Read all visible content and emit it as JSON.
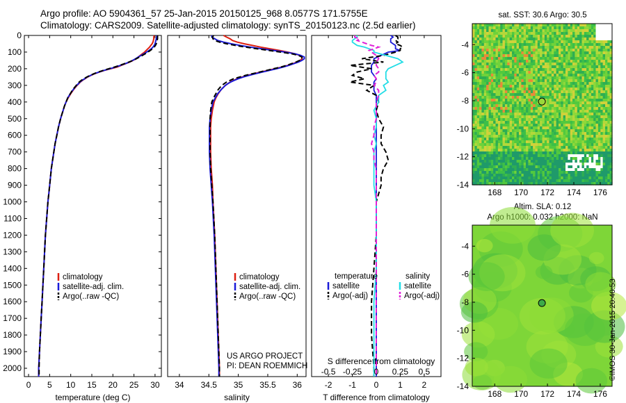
{
  "header": {
    "title": "Argo profile: AO 5904361_57 25-Jan-2015 20150125_968 8.0577S 171.5755E",
    "subtitle": "Climatology: CARS2009. Satellite-adjusted climatology: synTS_20150123.nc (2.5d earlier)"
  },
  "credit": "©IMOS 30-Jan-2015 20:40:53",
  "colors": {
    "climatology": "#dd1f10",
    "satellite": "#1a1ad8",
    "argo": "#000000",
    "sal_satellite": "#22dde6",
    "sal_argo": "#e020d8"
  },
  "chart_data": [
    {
      "type": "line",
      "name": "temperature",
      "xlabel": "temperature (deg C)",
      "ylim": [
        0,
        2050
      ],
      "xlim": [
        -1,
        31.5
      ],
      "yticks": [
        0,
        100,
        200,
        300,
        400,
        500,
        600,
        700,
        800,
        900,
        1000,
        1100,
        1200,
        1300,
        1400,
        1500,
        1600,
        1700,
        1800,
        1900,
        2000
      ],
      "xticks": [
        0,
        5,
        10,
        15,
        20,
        25,
        30
      ],
      "legend": [
        "climatology",
        "satellite-adj. clim.",
        "Argo(..raw -QC)"
      ],
      "depth": [
        0,
        10,
        20,
        30,
        40,
        50,
        60,
        70,
        80,
        90,
        100,
        110,
        120,
        130,
        140,
        150,
        160,
        170,
        180,
        190,
        200,
        210,
        220,
        230,
        240,
        250,
        260,
        270,
        280,
        290,
        300,
        325,
        350,
        375,
        400,
        425,
        450,
        475,
        500,
        550,
        600,
        650,
        700,
        750,
        800,
        850,
        900,
        950,
        1000,
        1100,
        1200,
        1300,
        1400,
        1500,
        1600,
        1700,
        1800,
        1900,
        2000,
        2050
      ],
      "series": [
        {
          "key": "climatology",
          "values": [
            29.8,
            29.7,
            29.7,
            29.6,
            29.5,
            29.3,
            29.0,
            28.7,
            28.3,
            27.9,
            27.5,
            27.0,
            26.5,
            26.0,
            25.5,
            24.8,
            24.0,
            23.0,
            22.0,
            21.0,
            19.5,
            18.0,
            16.8,
            15.7,
            14.8,
            14.0,
            13.4,
            12.8,
            12.3,
            11.9,
            11.5,
            10.7,
            10.0,
            9.4,
            8.9,
            8.5,
            8.2,
            7.9,
            7.6,
            7.1,
            6.7,
            6.3,
            6.0,
            5.7,
            5.4,
            5.2,
            5.0,
            4.8,
            4.6,
            4.3,
            4.0,
            3.8,
            3.6,
            3.4,
            3.2,
            3.0,
            2.8,
            2.6,
            2.4,
            2.4
          ]
        },
        {
          "key": "satellite",
          "values": [
            30.4,
            30.4,
            30.3,
            30.2,
            30.1,
            30.0,
            29.8,
            29.5,
            29.1,
            28.6,
            28.0,
            27.4,
            26.7,
            26.0,
            25.4,
            24.7,
            23.9,
            22.9,
            21.8,
            20.6,
            19.3,
            17.9,
            16.7,
            15.6,
            14.7,
            13.9,
            13.3,
            12.7,
            12.2,
            11.8,
            11.4,
            10.6,
            9.9,
            9.3,
            8.9,
            8.5,
            8.2,
            7.9,
            7.6,
            7.1,
            6.7,
            6.3,
            6.0,
            5.7,
            5.4,
            5.2,
            5.0,
            4.8,
            4.6,
            4.3,
            4.0,
            3.8,
            3.6,
            3.4,
            3.2,
            3.0,
            2.8,
            2.6,
            2.4,
            2.4
          ]
        },
        {
          "key": "argo",
          "values": [
            30.6,
            30.6,
            30.6,
            30.5,
            30.4,
            30.3,
            30.1,
            29.8,
            29.4,
            28.9,
            28.3,
            27.7,
            27.0,
            26.3,
            25.6,
            24.8,
            23.8,
            22.7,
            21.6,
            20.4,
            19.0,
            17.7,
            16.5,
            15.5,
            14.6,
            13.8,
            13.1,
            12.5,
            12.0,
            11.6,
            11.3,
            10.5,
            9.9,
            9.3,
            8.9,
            8.5,
            8.2,
            7.9,
            7.6,
            7.1,
            6.7,
            6.3,
            6.0,
            5.7,
            5.4,
            5.2,
            5.0,
            4.8,
            4.6,
            4.3,
            4.0,
            3.8,
            3.6,
            3.4,
            3.2,
            3.0,
            2.8,
            2.6,
            2.5,
            2.5
          ]
        }
      ]
    },
    {
      "type": "line",
      "name": "salinity",
      "xlabel": "salinity",
      "ylim": [
        0,
        2050
      ],
      "xlim": [
        33.8,
        36.15
      ],
      "xticks": [
        34,
        34.5,
        35,
        35.5,
        36
      ],
      "legend": [
        "climatology",
        "satellite-adj. clim.",
        "Argo(..raw -QC)"
      ],
      "annotation": [
        "US ARGO PROJECT",
        "PI: DEAN ROEMMICH"
      ],
      "depth": [
        0,
        10,
        20,
        30,
        40,
        50,
        60,
        70,
        80,
        90,
        100,
        110,
        120,
        130,
        140,
        150,
        160,
        170,
        180,
        190,
        200,
        210,
        220,
        230,
        240,
        250,
        260,
        270,
        280,
        290,
        300,
        325,
        350,
        375,
        400,
        450,
        500,
        550,
        600,
        700,
        800,
        900,
        1000,
        1200,
        1400,
        1600,
        1800,
        2000,
        2050
      ],
      "series": [
        {
          "key": "climatology",
          "values": [
            34.75,
            34.8,
            34.86,
            34.9,
            34.98,
            35.1,
            35.24,
            35.38,
            35.54,
            35.7,
            35.84,
            35.96,
            36.04,
            36.08,
            36.08,
            36.05,
            36.0,
            35.92,
            35.84,
            35.74,
            35.62,
            35.5,
            35.38,
            35.26,
            35.16,
            35.06,
            34.98,
            34.92,
            34.86,
            34.82,
            34.78,
            34.71,
            34.66,
            34.62,
            34.59,
            34.56,
            34.54,
            34.53,
            34.53,
            34.53,
            34.54,
            34.56,
            34.57,
            34.6,
            34.62,
            34.64,
            34.66,
            34.68,
            34.68
          ]
        },
        {
          "key": "satellite",
          "values": [
            34.55,
            34.55,
            34.6,
            34.65,
            34.75,
            34.88,
            35.03,
            35.2,
            35.4,
            35.6,
            35.8,
            35.96,
            36.06,
            36.12,
            36.12,
            36.08,
            36.02,
            35.94,
            35.86,
            35.76,
            35.65,
            35.53,
            35.41,
            35.29,
            35.18,
            35.08,
            35.0,
            34.93,
            34.87,
            34.82,
            34.78,
            34.71,
            34.65,
            34.61,
            34.57,
            34.54,
            34.52,
            34.51,
            34.51,
            34.51,
            34.52,
            34.54,
            34.56,
            34.59,
            34.61,
            34.63,
            34.65,
            34.67,
            34.67
          ]
        },
        {
          "key": "argo",
          "values": [
            34.58,
            34.56,
            34.57,
            34.6,
            34.68,
            34.8,
            34.95,
            35.12,
            35.32,
            35.52,
            35.72,
            35.9,
            36.02,
            36.08,
            36.08,
            36.04,
            35.98,
            35.9,
            35.82,
            35.72,
            35.6,
            35.48,
            35.36,
            35.24,
            35.12,
            35.02,
            34.92,
            34.86,
            34.8,
            34.76,
            34.72,
            34.66,
            34.62,
            34.58,
            34.55,
            34.53,
            34.52,
            34.52,
            34.52,
            34.52,
            34.53,
            34.55,
            34.57,
            34.6,
            34.62,
            34.64,
            34.66,
            34.68,
            34.68
          ]
        }
      ]
    },
    {
      "type": "line",
      "name": "difference",
      "xlabel": "T difference from climatology",
      "top_xlabel": "S difference from climatology",
      "ylim": [
        0,
        2050
      ],
      "xlim": [
        -2.7,
        2.7
      ],
      "xticks": [
        -2,
        -1,
        0,
        1,
        2
      ],
      "s_ticks": [
        {
          "label": "-0.5",
          "t": -2
        },
        {
          "label": "-0.25",
          "t": -1
        },
        {
          "label": "0",
          "t": 0
        },
        {
          "label": "0.25",
          "t": 1
        },
        {
          "label": "0.5",
          "t": 2
        }
      ],
      "legend_t_title": "temperature",
      "legend_s_title": "salinity",
      "legend": [
        "satellite",
        "Argo(-adj)",
        "satellite",
        "Argo(-adj)"
      ],
      "depth": [
        0,
        10,
        20,
        30,
        40,
        50,
        60,
        70,
        80,
        90,
        100,
        120,
        140,
        160,
        180,
        200,
        220,
        240,
        260,
        280,
        300,
        330,
        360,
        400,
        450,
        500,
        550,
        600,
        650,
        700,
        750,
        800,
        850,
        900,
        1000,
        1200,
        1400,
        1600,
        1800,
        2000,
        2050
      ],
      "series": [
        {
          "key": "t_sat",
          "values": [
            0.6,
            0.7,
            0.6,
            0.6,
            0.6,
            0.7,
            0.8,
            0.8,
            0.8,
            1.0,
            0.5,
            0.2,
            -0.1,
            -0.1,
            -0.2,
            -0.2,
            -0.2,
            -0.1,
            0.0,
            -0.1,
            -0.1,
            -0.1,
            0.0,
            0.0,
            0.0,
            0.0,
            0.0,
            0.0,
            0.0,
            0.0,
            0.0,
            0.0,
            0.0,
            0.0,
            0.0,
            0.0,
            0.0,
            0.0,
            0.0,
            0.0,
            0.0
          ]
        },
        {
          "key": "t_argo",
          "values": [
            0.8,
            0.9,
            0.9,
            0.8,
            0.9,
            0.8,
            1.0,
            1.1,
            1.0,
            1.0,
            0.8,
            0.3,
            -0.6,
            0.3,
            -1.1,
            -0.2,
            -0.8,
            -1.0,
            -0.5,
            -1.1,
            -0.1,
            -0.4,
            0.0,
            0.1,
            0.0,
            0.1,
            0.3,
            0.2,
            0.2,
            0.4,
            0.5,
            0.3,
            0.2,
            0.2,
            0.0,
            0.0,
            -0.1,
            -0.2,
            -0.2,
            -0.1,
            -0.1
          ]
        },
        {
          "key": "s_sat",
          "values": [
            -0.8,
            -0.8,
            -0.9,
            -1.0,
            -1.0,
            -0.9,
            -0.8,
            -0.5,
            -0.3,
            -0.1,
            -0.1,
            0.4,
            0.9,
            1.1,
            0.8,
            0.5,
            0.4,
            0.4,
            0.4,
            0.5,
            0.3,
            0.4,
            0.1,
            0.1,
            -0.1,
            0.0,
            0.0,
            -0.1,
            0.0,
            -0.1,
            -0.1,
            -0.1,
            -0.1,
            -0.1,
            0.0,
            0.0,
            0.0,
            -0.1,
            -0.1,
            -0.1,
            -0.1
          ]
        },
        {
          "key": "s_argo",
          "values": [
            -0.9,
            -0.9,
            -0.7,
            -0.8,
            -0.6,
            -0.4,
            -0.2,
            0.1,
            -0.1,
            -0.3,
            -0.2,
            0.0,
            0.1,
            0.0,
            0.0,
            0.1,
            0.1,
            -0.1,
            0.0,
            0.0,
            -0.1,
            0.1,
            0.1,
            0.0,
            0.0,
            0.0,
            -0.1,
            -0.1,
            -0.2,
            -0.1,
            -0.1,
            0.0,
            0.0,
            0.0,
            0.0,
            0.0,
            0.0,
            0.0,
            0.0,
            0.0,
            0.0
          ]
        }
      ]
    },
    {
      "type": "heatmap",
      "name": "sst_map",
      "title": "sat. SST: 30.6  Argo: 30.5",
      "xlim": [
        166.3,
        176.9
      ],
      "ylim": [
        -14,
        -2.5
      ],
      "xticks": [
        168,
        170,
        172,
        174,
        176
      ],
      "yticks": [
        -4,
        -6,
        -8,
        -10,
        -12,
        -14
      ],
      "argo_position": {
        "lon": 171.58,
        "lat": -8.06
      }
    },
    {
      "type": "heatmap",
      "name": "sla_map",
      "title": "Altim. SLA: 0.12",
      "subtitle": "Argo h1000: 0.032  h2000: NaN",
      "xlim": [
        166.3,
        176.9
      ],
      "ylim": [
        -14,
        -2.5
      ],
      "xticks": [
        168,
        170,
        172,
        174,
        176
      ],
      "yticks": [
        -4,
        -6,
        -8,
        -10,
        -12,
        -14
      ],
      "argo_position": {
        "lon": 171.58,
        "lat": -8.06
      }
    }
  ]
}
